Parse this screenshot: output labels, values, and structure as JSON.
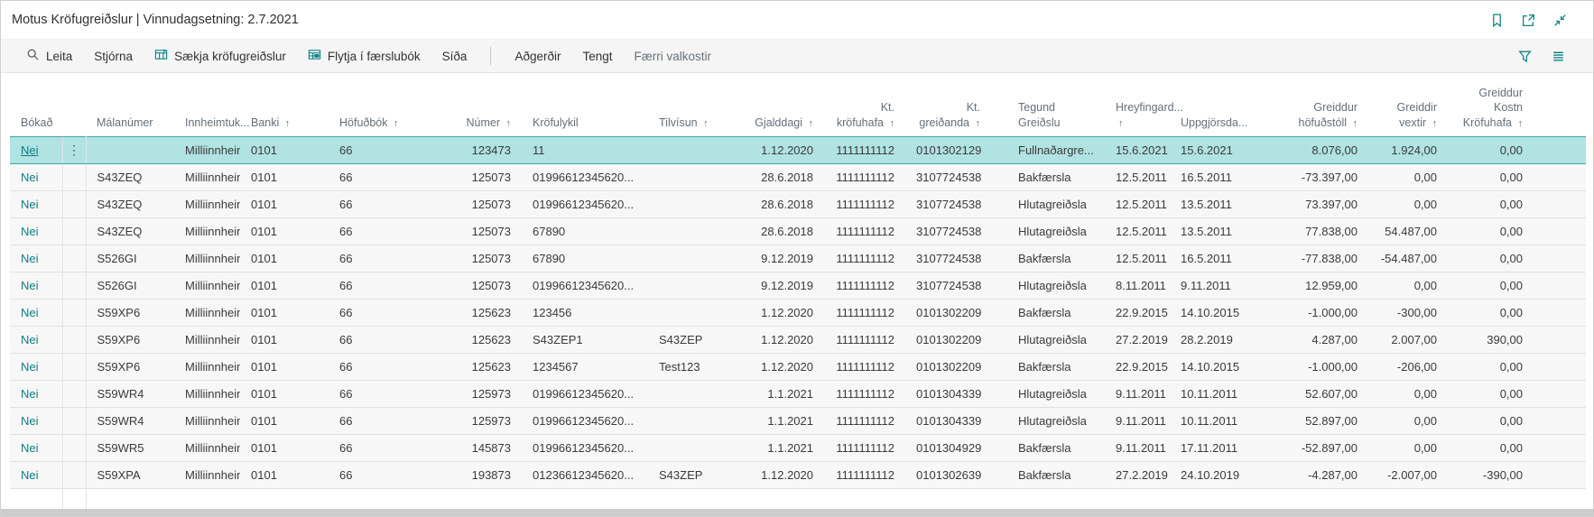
{
  "titlebar": {
    "title": "Motus Kröfugreiðslur | Vinnudagsetning: 2.7.2021",
    "icons": [
      "bookmark-icon",
      "open-in-new-icon",
      "collapse-icon"
    ]
  },
  "toolbar": {
    "search": "Leita",
    "manage": "Stjórna",
    "fetch_payments": "Sækja kröfugreiðslur",
    "move_to_journal": "Flytja í færslubók",
    "page": "Síða",
    "actions": "Aðgerðir",
    "related": "Tengt",
    "fewer_options": "Færri valkostir",
    "right_icons": [
      "filter-icon",
      "list-view-icon"
    ]
  },
  "colors": {
    "accent": "#0d8388",
    "link": "#0f7b82",
    "selected_row_bg": "#b0e3e2",
    "selected_row_border": "#41a8a8"
  },
  "table": {
    "columns": [
      {
        "id": "bokad",
        "label": "Bókað",
        "sorted": false,
        "align": "left"
      },
      {
        "id": "malanumer",
        "label": "Málanúmer",
        "sorted": false,
        "align": "left"
      },
      {
        "id": "innheimtuk",
        "label": "Innheimtuk...",
        "sorted": false,
        "align": "left"
      },
      {
        "id": "banki",
        "label": "Banki",
        "sorted": true,
        "align": "left"
      },
      {
        "id": "hofudbok",
        "label": "Höfuðbók",
        "sorted": true,
        "align": "left"
      },
      {
        "id": "numer",
        "label": "Númer",
        "sorted": true,
        "align": "right"
      },
      {
        "id": "krofulykil",
        "label": "Kröfulykil",
        "sorted": false,
        "align": "left"
      },
      {
        "id": "tilvisun",
        "label": "Tilvísun",
        "sorted": true,
        "align": "left"
      },
      {
        "id": "gjalddagi",
        "label": "Gjalddagi",
        "sorted": true,
        "align": "right"
      },
      {
        "id": "kt_krofuhafa",
        "label": "Kt. kröfuhafa",
        "sorted": true,
        "align": "right"
      },
      {
        "id": "kt_greidanda",
        "label": "Kt. greiðanda",
        "sorted": true,
        "align": "right"
      },
      {
        "id": "tegund",
        "label": "Tegund Greiðslu",
        "sorted": false,
        "align": "left"
      },
      {
        "id": "hreyfingard",
        "label": "Hreyfingard...",
        "sorted": true,
        "align": "left"
      },
      {
        "id": "uppgjorsda",
        "label": "Uppgjörsda...",
        "sorted": false,
        "align": "left"
      },
      {
        "id": "g_hofudstoll",
        "label": "Greiddur höfuðstóll",
        "sorted": true,
        "align": "right"
      },
      {
        "id": "g_vextir",
        "label": "Greiddir vextir",
        "sorted": true,
        "align": "right"
      },
      {
        "id": "g_kostn",
        "label": "Greiddur Kostn Kröfuhafa",
        "sorted": true,
        "align": "right"
      }
    ],
    "rows": [
      {
        "selected": true,
        "menu": true,
        "bokad": "Nei",
        "malanumer": "",
        "innheimtuk": "Milliinnheim...",
        "banki": "0101",
        "hofudbok": "66",
        "numer": "123473",
        "krofulykil": "11",
        "tilvisun": "",
        "gjalddagi": "1.12.2020",
        "kt_krofuhafa": "1111111112",
        "kt_greidanda": "0101302129",
        "tegund": "Fullnaðargre...",
        "hreyfingard": "15.6.2021",
        "uppgjorsda": "15.6.2021",
        "g_hofudstoll": "8.076,00",
        "g_vextir": "1.924,00",
        "g_kostn": "0,00"
      },
      {
        "bokad": "Nei",
        "malanumer": "S43ZEQ",
        "innheimtuk": "Milliinnheim...",
        "banki": "0101",
        "hofudbok": "66",
        "numer": "125073",
        "krofulykil": "01996612345620...",
        "tilvisun": "",
        "gjalddagi": "28.6.2018",
        "kt_krofuhafa": "1111111112",
        "kt_greidanda": "3107724538",
        "tegund": "Bakfærsla",
        "hreyfingard": "12.5.2011",
        "uppgjorsda": "16.5.2011",
        "g_hofudstoll": "-73.397,00",
        "g_vextir": "0,00",
        "g_kostn": "0,00"
      },
      {
        "bokad": "Nei",
        "malanumer": "S43ZEQ",
        "innheimtuk": "Milliinnheim...",
        "banki": "0101",
        "hofudbok": "66",
        "numer": "125073",
        "krofulykil": "01996612345620...",
        "tilvisun": "",
        "gjalddagi": "28.6.2018",
        "kt_krofuhafa": "1111111112",
        "kt_greidanda": "3107724538",
        "tegund": "Hlutagreiðsla",
        "hreyfingard": "12.5.2011",
        "uppgjorsda": "13.5.2011",
        "g_hofudstoll": "73.397,00",
        "g_vextir": "0,00",
        "g_kostn": "0,00"
      },
      {
        "bokad": "Nei",
        "malanumer": "S43ZEQ",
        "innheimtuk": "Milliinnheim...",
        "banki": "0101",
        "hofudbok": "66",
        "numer": "125073",
        "krofulykil": "67890",
        "tilvisun": "",
        "gjalddagi": "28.6.2018",
        "kt_krofuhafa": "1111111112",
        "kt_greidanda": "3107724538",
        "tegund": "Hlutagreiðsla",
        "hreyfingard": "12.5.2011",
        "uppgjorsda": "13.5.2011",
        "g_hofudstoll": "77.838,00",
        "g_vextir": "54.487,00",
        "g_kostn": "0,00"
      },
      {
        "bokad": "Nei",
        "malanumer": "S526GI",
        "innheimtuk": "Milliinnheim...",
        "banki": "0101",
        "hofudbok": "66",
        "numer": "125073",
        "krofulykil": "67890",
        "tilvisun": "",
        "gjalddagi": "9.12.2019",
        "kt_krofuhafa": "1111111112",
        "kt_greidanda": "3107724538",
        "tegund": "Bakfærsla",
        "hreyfingard": "12.5.2011",
        "uppgjorsda": "16.5.2011",
        "g_hofudstoll": "-77.838,00",
        "g_vextir": "-54.487,00",
        "g_kostn": "0,00"
      },
      {
        "bokad": "Nei",
        "malanumer": "S526GI",
        "innheimtuk": "Milliinnheim...",
        "banki": "0101",
        "hofudbok": "66",
        "numer": "125073",
        "krofulykil": "01996612345620...",
        "tilvisun": "",
        "gjalddagi": "9.12.2019",
        "kt_krofuhafa": "1111111112",
        "kt_greidanda": "3107724538",
        "tegund": "Hlutagreiðsla",
        "hreyfingard": "8.11.2011",
        "uppgjorsda": "9.11.2011",
        "g_hofudstoll": "12.959,00",
        "g_vextir": "0,00",
        "g_kostn": "0,00"
      },
      {
        "bokad": "Nei",
        "malanumer": "S59XP6",
        "innheimtuk": "Milliinnheim...",
        "banki": "0101",
        "hofudbok": "66",
        "numer": "125623",
        "krofulykil": "123456",
        "tilvisun": "",
        "gjalddagi": "1.12.2020",
        "kt_krofuhafa": "1111111112",
        "kt_greidanda": "0101302209",
        "tegund": "Bakfærsla",
        "hreyfingard": "22.9.2015",
        "uppgjorsda": "14.10.2015",
        "g_hofudstoll": "-1.000,00",
        "g_vextir": "-300,00",
        "g_kostn": "0,00"
      },
      {
        "bokad": "Nei",
        "malanumer": "S59XP6",
        "innheimtuk": "Milliinnheim...",
        "banki": "0101",
        "hofudbok": "66",
        "numer": "125623",
        "krofulykil": "S43ZEP1",
        "tilvisun": "S43ZEP",
        "gjalddagi": "1.12.2020",
        "kt_krofuhafa": "1111111112",
        "kt_greidanda": "0101302209",
        "tegund": "Hlutagreiðsla",
        "hreyfingard": "27.2.2019",
        "uppgjorsda": "28.2.2019",
        "g_hofudstoll": "4.287,00",
        "g_vextir": "2.007,00",
        "g_kostn": "390,00"
      },
      {
        "bokad": "Nei",
        "malanumer": "S59XP6",
        "innheimtuk": "Milliinnheim...",
        "banki": "0101",
        "hofudbok": "66",
        "numer": "125623",
        "krofulykil": "1234567",
        "tilvisun": "Test123",
        "gjalddagi": "1.12.2020",
        "kt_krofuhafa": "1111111112",
        "kt_greidanda": "0101302209",
        "tegund": "Bakfærsla",
        "hreyfingard": "22.9.2015",
        "uppgjorsda": "14.10.2015",
        "g_hofudstoll": "-1.000,00",
        "g_vextir": "-206,00",
        "g_kostn": "0,00"
      },
      {
        "bokad": "Nei",
        "malanumer": "S59WR4",
        "innheimtuk": "Milliinnheim...",
        "banki": "0101",
        "hofudbok": "66",
        "numer": "125973",
        "krofulykil": "01996612345620...",
        "tilvisun": "",
        "gjalddagi": "1.1.2021",
        "kt_krofuhafa": "1111111112",
        "kt_greidanda": "0101304339",
        "tegund": "Hlutagreiðsla",
        "hreyfingard": "9.11.2011",
        "uppgjorsda": "10.11.2011",
        "g_hofudstoll": "52.607,00",
        "g_vextir": "0,00",
        "g_kostn": "0,00"
      },
      {
        "bokad": "Nei",
        "malanumer": "S59WR4",
        "innheimtuk": "Milliinnheim...",
        "banki": "0101",
        "hofudbok": "66",
        "numer": "125973",
        "krofulykil": "01996612345620...",
        "tilvisun": "",
        "gjalddagi": "1.1.2021",
        "kt_krofuhafa": "1111111112",
        "kt_greidanda": "0101304339",
        "tegund": "Hlutagreiðsla",
        "hreyfingard": "9.11.2011",
        "uppgjorsda": "10.11.2011",
        "g_hofudstoll": "52.897,00",
        "g_vextir": "0,00",
        "g_kostn": "0,00"
      },
      {
        "bokad": "Nei",
        "malanumer": "S59WR5",
        "innheimtuk": "Milliinnheim...",
        "banki": "0101",
        "hofudbok": "66",
        "numer": "145873",
        "krofulykil": "01996612345620...",
        "tilvisun": "",
        "gjalddagi": "1.1.2021",
        "kt_krofuhafa": "1111111112",
        "kt_greidanda": "0101304929",
        "tegund": "Bakfærsla",
        "hreyfingard": "9.11.2011",
        "uppgjorsda": "17.11.2011",
        "g_hofudstoll": "-52.897,00",
        "g_vextir": "0,00",
        "g_kostn": "0,00"
      },
      {
        "bokad": "Nei",
        "malanumer": "S59XPA",
        "innheimtuk": "Milliinnheim...",
        "banki": "0101",
        "hofudbok": "66",
        "numer": "193873",
        "krofulykil": "01236612345620...",
        "tilvisun": "S43ZEP",
        "gjalddagi": "1.12.2020",
        "kt_krofuhafa": "1111111112",
        "kt_greidanda": "0101302639",
        "tegund": "Bakfærsla",
        "hreyfingard": "27.2.2019",
        "uppgjorsda": "24.10.2019",
        "g_hofudstoll": "-4.287,00",
        "g_vextir": "-2.007,00",
        "g_kostn": "-390,00"
      }
    ]
  }
}
